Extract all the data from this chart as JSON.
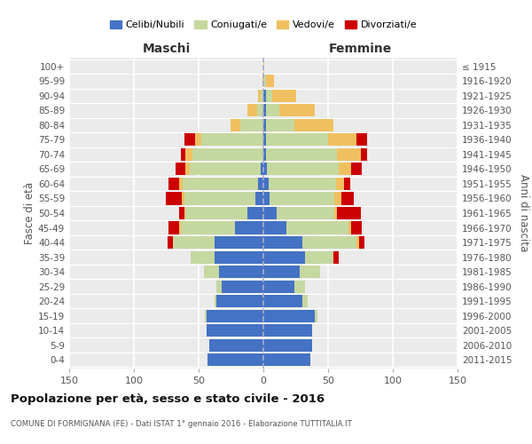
{
  "age_groups": [
    "0-4",
    "5-9",
    "10-14",
    "15-19",
    "20-24",
    "25-29",
    "30-34",
    "35-39",
    "40-44",
    "45-49",
    "50-54",
    "55-59",
    "60-64",
    "65-69",
    "70-74",
    "75-79",
    "80-84",
    "85-89",
    "90-94",
    "95-99",
    "100+"
  ],
  "birth_years": [
    "2011-2015",
    "2006-2010",
    "2001-2005",
    "1996-2000",
    "1991-1995",
    "1986-1990",
    "1981-1985",
    "1976-1980",
    "1971-1975",
    "1966-1970",
    "1961-1965",
    "1956-1960",
    "1951-1955",
    "1946-1950",
    "1941-1945",
    "1936-1940",
    "1931-1935",
    "1926-1930",
    "1921-1925",
    "1916-1920",
    "≤ 1915"
  ],
  "males": {
    "celibi": [
      43,
      42,
      44,
      44,
      36,
      32,
      34,
      38,
      38,
      22,
      12,
      6,
      4,
      2,
      0,
      0,
      0,
      0,
      0,
      0,
      0
    ],
    "coniugati": [
      0,
      0,
      0,
      1,
      2,
      4,
      12,
      18,
      32,
      42,
      48,
      55,
      58,
      55,
      55,
      48,
      18,
      5,
      2,
      0,
      0
    ],
    "vedovi": [
      0,
      0,
      0,
      0,
      0,
      0,
      0,
      0,
      0,
      1,
      1,
      2,
      3,
      3,
      5,
      5,
      7,
      7,
      2,
      1,
      0
    ],
    "divorziati": [
      0,
      0,
      0,
      0,
      0,
      0,
      0,
      0,
      4,
      8,
      4,
      12,
      8,
      8,
      4,
      8,
      0,
      0,
      0,
      0,
      0
    ]
  },
  "females": {
    "nubili": [
      36,
      38,
      38,
      40,
      30,
      24,
      28,
      32,
      30,
      18,
      10,
      5,
      4,
      3,
      2,
      2,
      2,
      2,
      2,
      0,
      0
    ],
    "coniugate": [
      0,
      0,
      0,
      2,
      4,
      8,
      16,
      22,
      42,
      48,
      45,
      50,
      52,
      55,
      55,
      48,
      22,
      10,
      5,
      2,
      0
    ],
    "vedove": [
      0,
      0,
      0,
      0,
      0,
      0,
      0,
      0,
      2,
      2,
      2,
      5,
      6,
      10,
      18,
      22,
      30,
      28,
      18,
      6,
      1
    ],
    "divorziate": [
      0,
      0,
      0,
      0,
      0,
      0,
      0,
      4,
      4,
      8,
      18,
      10,
      5,
      8,
      5,
      8,
      0,
      0,
      0,
      0,
      0
    ]
  },
  "colors": {
    "celibi": "#4472C4",
    "coniugati": "#C5D8A0",
    "vedovi": "#F0C060",
    "divorziati": "#CC0000"
  },
  "title": "Popolazione per età, sesso e stato civile - 2016",
  "subtitle": "COMUNE DI FORMIGNANA (FE) - Dati ISTAT 1° gennaio 2016 - Elaborazione TUTTITALIA.IT",
  "xlabel_left": "Maschi",
  "xlabel_right": "Femmine",
  "ylabel_left": "Fasce di età",
  "ylabel_right": "Anni di nascita",
  "xlim": 150,
  "legend_labels": [
    "Celibi/Nubili",
    "Coniugati/e",
    "Vedovi/e",
    "Divorziati/e"
  ],
  "bar_height": 0.85
}
